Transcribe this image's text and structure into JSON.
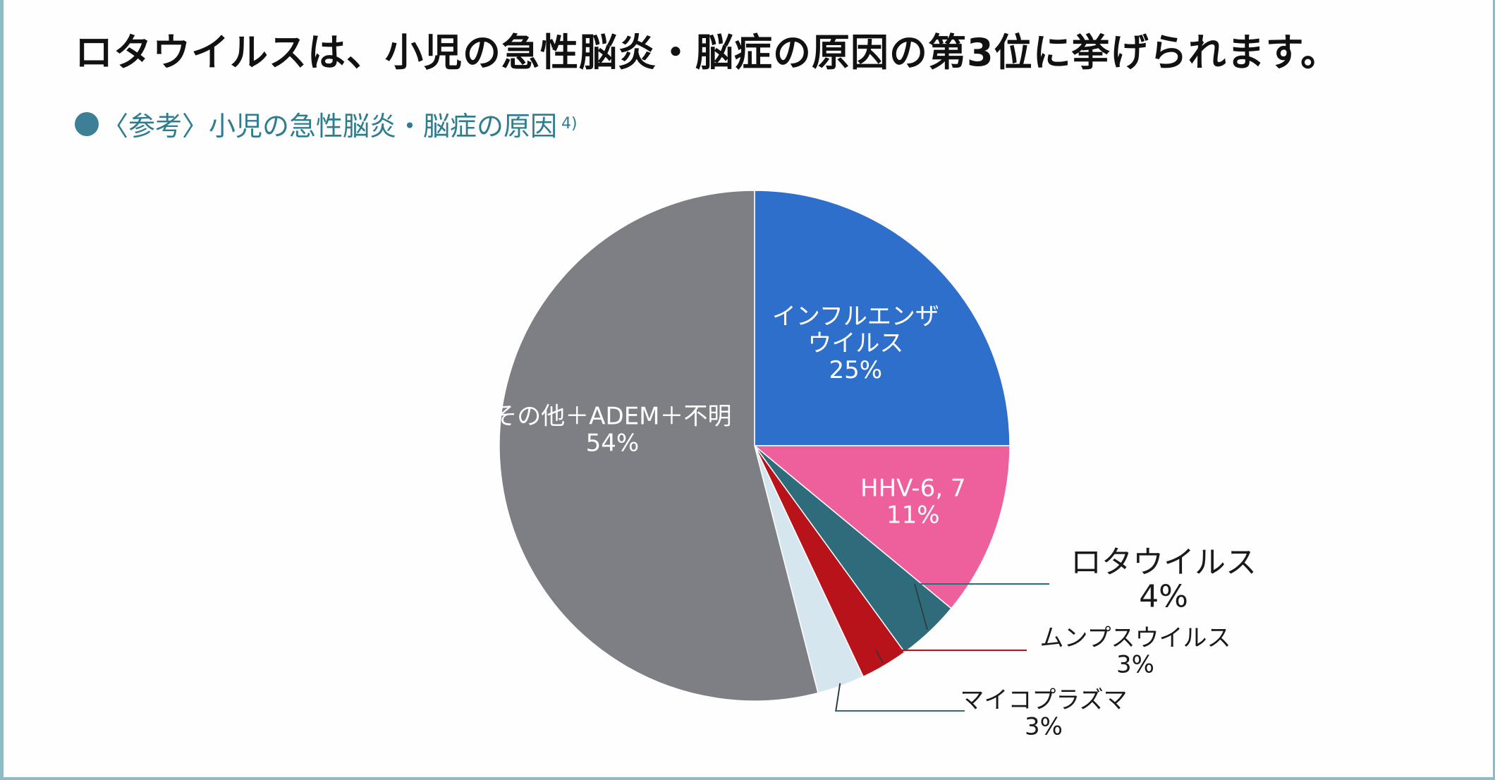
{
  "headline": "ロタウイルスは、小児の急性脳炎・脳症の原因の第3位に挙げられます。",
  "subtitle": {
    "text": "〈参考〉小児の急性脳炎・脳症の原因",
    "ref": "4)"
  },
  "chart_data": {
    "type": "pie",
    "title": "〈参考〉小児の急性脳炎・脳症の原因",
    "slices": [
      {
        "label": "インフルエンザウイルス",
        "label_lines": [
          "インフルエンザ",
          "ウイルス"
        ],
        "value": 25,
        "value_label": "25%",
        "color": "#2f6fcc",
        "label_position": "inside"
      },
      {
        "label": "HHV-6, 7",
        "label_lines": [
          "HHV-6, 7"
        ],
        "value": 11,
        "value_label": "11%",
        "color": "#ee609b",
        "label_position": "inside"
      },
      {
        "label": "ロタウイルス",
        "label_lines": [
          "ロタウイルス"
        ],
        "value": 4,
        "value_label": "4%",
        "color": "#2f6c7b",
        "label_position": "outside"
      },
      {
        "label": "ムンプスウイルス",
        "label_lines": [
          "ムンプスウイルス"
        ],
        "value": 3,
        "value_label": "3%",
        "color": "#b8121b",
        "label_position": "outside"
      },
      {
        "label": "マイコプラズマ",
        "label_lines": [
          "マイコプラズマ"
        ],
        "value": 3,
        "value_label": "3%",
        "color": "#d6e6ef",
        "label_position": "outside"
      },
      {
        "label": "その他＋ADEM＋不明",
        "label_lines": [
          "その他＋ADEM＋不明"
        ],
        "value": 54,
        "value_label": "54%",
        "color": "#7e7f85",
        "label_position": "inside"
      }
    ],
    "start_angle": "12 o'clock",
    "direction": "clockwise",
    "legend": "none"
  }
}
